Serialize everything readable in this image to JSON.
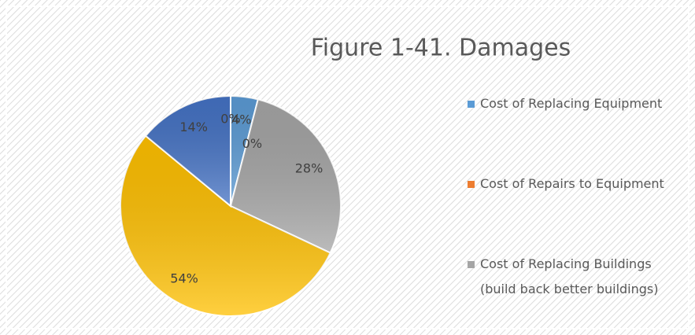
{
  "chart_data": {
    "type": "pie",
    "title": "Figure 1-41. Damages",
    "categories": [
      "Cost of Replacing Equipment",
      "Cost of Repairs to Equipment",
      "Cost of Replacing Buildings (build back better buildings)",
      null,
      null,
      null
    ],
    "values": [
      4,
      0,
      28,
      54,
      14,
      0
    ],
    "value_labels": [
      "4%",
      "0%",
      "28%",
      "54%",
      "14%",
      "0%"
    ],
    "colors": [
      "#5b9bd5",
      "#ed7d31",
      "#a5a5a5",
      "#ffc000",
      "#4472c4",
      "#70ad47"
    ],
    "legend": "right"
  }
}
